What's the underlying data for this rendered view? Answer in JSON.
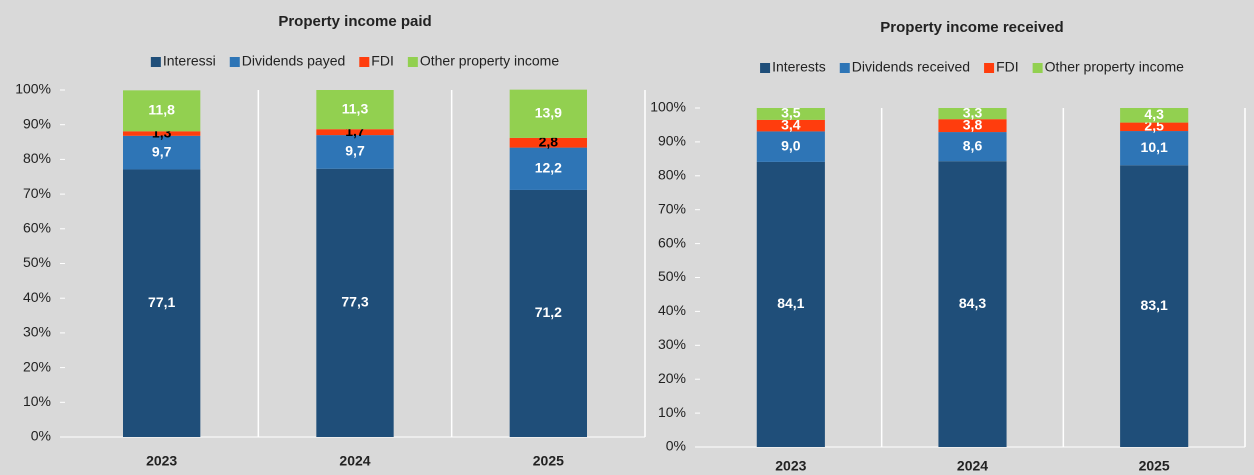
{
  "chart_data": [
    {
      "type": "stacked_bar",
      "title": "Property income paid",
      "categories": [
        "2023",
        "2024",
        "2025"
      ],
      "series": [
        {
          "name": "Interessi",
          "color": "#1f4e79",
          "label_color": "#ffffff",
          "values": [
            77.1,
            77.3,
            71.2
          ],
          "value_labels": [
            "77,1",
            "77,3",
            "71,2"
          ]
        },
        {
          "name": "Dividends payed",
          "color": "#2e75b6",
          "label_color": "#ffffff",
          "values": [
            9.7,
            9.7,
            12.2
          ],
          "value_labels": [
            "9,7",
            "9,7",
            "12,2"
          ]
        },
        {
          "name": "FDI",
          "color": "#ff3d0d",
          "label_color": "#000000",
          "values": [
            1.3,
            1.7,
            2.8
          ],
          "value_labels": [
            "1,3",
            "1,7",
            "2,8"
          ]
        },
        {
          "name": "Other property income",
          "color": "#92d050",
          "label_color": "#ffffff",
          "values": [
            11.8,
            11.3,
            13.9
          ],
          "value_labels": [
            "11,8",
            "11,3",
            "13,9"
          ]
        }
      ],
      "ylim": [
        0,
        100
      ],
      "yticks": [
        {
          "value": 0,
          "label": "0%"
        },
        {
          "value": 10,
          "label": "10%"
        },
        {
          "value": 20,
          "label": "20%"
        },
        {
          "value": 30,
          "label": "30%"
        },
        {
          "value": 40,
          "label": "40%"
        },
        {
          "value": 50,
          "label": "50%"
        },
        {
          "value": 60,
          "label": "60%"
        },
        {
          "value": 70,
          "label": "70%"
        },
        {
          "value": 80,
          "label": "80%"
        },
        {
          "value": 90,
          "label": "90%"
        },
        {
          "value": 100,
          "label": "100%"
        }
      ],
      "legend": "top"
    },
    {
      "type": "stacked_bar",
      "title": "Property income received",
      "categories": [
        "2023",
        "2024",
        "2025"
      ],
      "series": [
        {
          "name": "Interests",
          "color": "#1f4e79",
          "label_color": "#ffffff",
          "values": [
            84.1,
            84.3,
            83.1
          ],
          "value_labels": [
            "84,1",
            "84,3",
            "83,1"
          ]
        },
        {
          "name": "Dividends received",
          "color": "#2e75b6",
          "label_color": "#ffffff",
          "values": [
            9.0,
            8.6,
            10.1
          ],
          "value_labels": [
            "9,0",
            "8,6",
            "10,1"
          ]
        },
        {
          "name": "FDI",
          "color": "#ff3d0d",
          "label_color": "#ffffff",
          "values": [
            3.4,
            3.8,
            2.5
          ],
          "value_labels": [
            "3,4",
            "3,8",
            "2,5"
          ]
        },
        {
          "name": "Other property income",
          "color": "#92d050",
          "label_color": "#ffffff",
          "values": [
            3.5,
            3.3,
            4.3
          ],
          "value_labels": [
            "3,5",
            "3,3",
            "4,3"
          ]
        }
      ],
      "ylim": [
        0,
        100
      ],
      "yticks": [
        {
          "value": 0,
          "label": "0%"
        },
        {
          "value": 10,
          "label": "10%"
        },
        {
          "value": 20,
          "label": "20%"
        },
        {
          "value": 30,
          "label": "30%"
        },
        {
          "value": 40,
          "label": "40%"
        },
        {
          "value": 50,
          "label": "50%"
        },
        {
          "value": 60,
          "label": "60%"
        },
        {
          "value": 70,
          "label": "70%"
        },
        {
          "value": 80,
          "label": "80%"
        },
        {
          "value": 90,
          "label": "90%"
        },
        {
          "value": 100,
          "label": "100%"
        }
      ],
      "legend": "top"
    }
  ]
}
